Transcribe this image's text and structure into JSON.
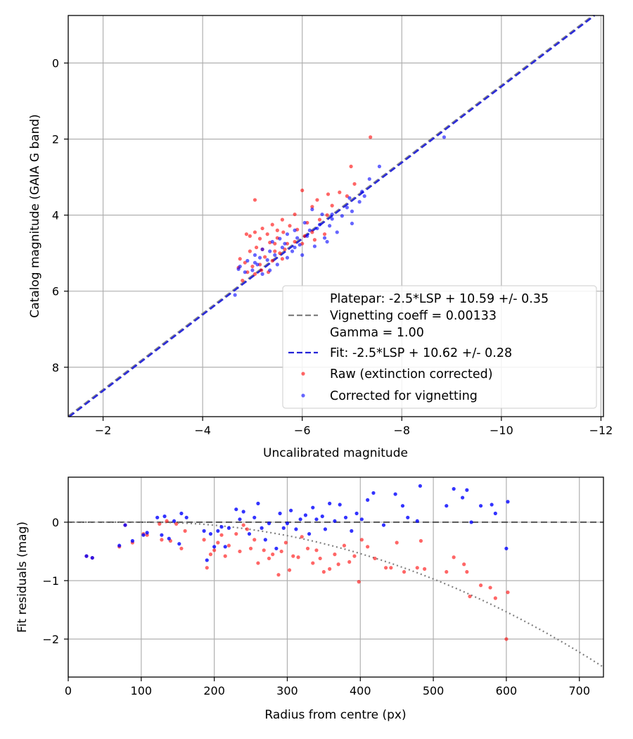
{
  "chart_data": [
    {
      "type": "scatter",
      "title": "",
      "xlabel": "Uncalibrated magnitude",
      "ylabel": "Catalog magnitude (GAIA G band)",
      "xlim": [
        -1.3,
        -12.05
      ],
      "ylim": [
        9.3,
        -1.25
      ],
      "x_ticks": [
        -2,
        -4,
        -6,
        -8,
        -10,
        -12
      ],
      "x_tick_labels": [
        "−2",
        "−4",
        "−6",
        "−8",
        "−10",
        "−12"
      ],
      "y_ticks": [
        0,
        2,
        4,
        6,
        8
      ],
      "y_tick_labels": [
        "0",
        "2",
        "4",
        "6",
        "8"
      ],
      "grid": true,
      "legend_position": "lower-right",
      "legend": {
        "platepar_lines": [
          "Platepar: -2.5*LSP + 10.59 +/- 0.35",
          "Vignetting coeff = 0.00133",
          "Gamma = 1.00"
        ],
        "fit": "Fit: -2.5*LSP + 10.62 +/- 0.28",
        "raw": "Raw (extinction corrected)",
        "corrected": "Corrected for vignetting"
      },
      "colors": {
        "platepar": "#808080",
        "fit": "#2323d8",
        "raw": "#ff0000",
        "corrected": "#0000ff"
      },
      "lines": [
        {
          "name": "Platepar",
          "slope": 1.0,
          "intercept": 10.59
        },
        {
          "name": "Fit",
          "slope": 1.0,
          "intercept": 10.62
        }
      ],
      "series": [
        {
          "name": "Raw (extinction corrected)",
          "points": [
            [
              -7.37,
              1.95
            ],
            [
              -6.98,
              2.72
            ],
            [
              -7.05,
              3.18
            ],
            [
              -6.75,
              3.4
            ],
            [
              -6.52,
              3.45
            ],
            [
              -6.0,
              3.35
            ],
            [
              -6.3,
              3.6
            ],
            [
              -6.6,
              3.75
            ],
            [
              -6.2,
              3.78
            ],
            [
              -5.05,
              3.6
            ],
            [
              -5.85,
              3.98
            ],
            [
              -5.6,
              4.12
            ],
            [
              -5.75,
              4.28
            ],
            [
              -5.4,
              4.25
            ],
            [
              -5.5,
              4.4
            ],
            [
              -5.62,
              4.45
            ],
            [
              -5.9,
              4.38
            ],
            [
              -6.1,
              4.2
            ],
            [
              -6.35,
              4.12
            ],
            [
              -6.5,
              4.0
            ],
            [
              -5.2,
              4.35
            ],
            [
              -5.3,
              4.5
            ],
            [
              -5.05,
              4.45
            ],
            [
              -4.88,
              4.5
            ],
            [
              -4.95,
              4.55
            ],
            [
              -5.5,
              4.6
            ],
            [
              -5.7,
              4.75
            ],
            [
              -5.85,
              4.7
            ],
            [
              -6.05,
              4.55
            ],
            [
              -6.2,
              4.45
            ],
            [
              -5.35,
              4.72
            ],
            [
              -5.2,
              4.9
            ],
            [
              -5.08,
              4.85
            ],
            [
              -4.95,
              4.95
            ],
            [
              -5.45,
              4.95
            ],
            [
              -5.55,
              5.0
            ],
            [
              -5.65,
              4.9
            ],
            [
              -6.0,
              4.75
            ],
            [
              -4.75,
              5.15
            ],
            [
              -4.85,
              5.25
            ],
            [
              -5.0,
              5.35
            ],
            [
              -5.15,
              5.3
            ],
            [
              -5.25,
              5.1
            ],
            [
              -5.4,
              5.2
            ],
            [
              -4.72,
              5.38
            ],
            [
              -4.9,
              5.5
            ],
            [
              -5.05,
              5.55
            ],
            [
              -5.18,
              5.45
            ],
            [
              -5.32,
              5.5
            ],
            [
              -4.8,
              5.72
            ],
            [
              -5.6,
              5.15
            ],
            [
              -6.25,
              4.65
            ],
            [
              -6.45,
              4.5
            ],
            [
              -5.15,
              4.62
            ],
            [
              -5.45,
              4.75
            ],
            [
              -6.9,
              3.5
            ]
          ]
        },
        {
          "name": "Corrected for vignetting",
          "points": [
            [
              -8.85,
              1.95
            ],
            [
              -7.55,
              2.72
            ],
            [
              -7.35,
              3.05
            ],
            [
              -7.2,
              3.38
            ],
            [
              -6.95,
              3.55
            ],
            [
              -6.9,
              3.8
            ],
            [
              -7.15,
              3.65
            ],
            [
              -6.8,
              4.02
            ],
            [
              -6.6,
              4.1
            ],
            [
              -6.4,
              3.98
            ],
            [
              -6.2,
              3.85
            ],
            [
              -7.0,
              4.22
            ],
            [
              -6.55,
              4.28
            ],
            [
              -6.3,
              4.35
            ],
            [
              -6.05,
              4.2
            ],
            [
              -5.85,
              4.4
            ],
            [
              -5.7,
              4.5
            ],
            [
              -6.1,
              4.55
            ],
            [
              -6.45,
              4.6
            ],
            [
              -6.7,
              4.45
            ],
            [
              -5.55,
              4.62
            ],
            [
              -5.95,
              4.78
            ],
            [
              -6.25,
              4.82
            ],
            [
              -5.4,
              4.7
            ],
            [
              -5.6,
              4.85
            ],
            [
              -5.8,
              4.95
            ],
            [
              -6.0,
              5.05
            ],
            [
              -5.2,
              4.9
            ],
            [
              -5.45,
              5.05
            ],
            [
              -5.7,
              5.12
            ],
            [
              -5.05,
              5.05
            ],
            [
              -5.3,
              5.18
            ],
            [
              -5.5,
              5.3
            ],
            [
              -4.9,
              5.2
            ],
            [
              -5.1,
              5.3
            ],
            [
              -5.35,
              5.45
            ],
            [
              -4.75,
              5.35
            ],
            [
              -5.0,
              5.45
            ],
            [
              -5.2,
              5.55
            ],
            [
              -4.85,
              5.5
            ],
            [
              -4.65,
              6.1
            ],
            [
              -4.72,
              5.42
            ],
            [
              -5.9,
              4.6
            ],
            [
              -6.15,
              4.4
            ],
            [
              -6.35,
              4.25
            ],
            [
              -6.6,
              3.98
            ],
            [
              -7.0,
              3.9
            ],
            [
              -7.25,
              3.5
            ],
            [
              -5.35,
              4.95
            ],
            [
              -5.15,
              5.12
            ],
            [
              -5.65,
              4.75
            ],
            [
              -6.5,
              4.7
            ],
            [
              -5.05,
              5.25
            ],
            [
              -5.85,
              4.85
            ]
          ]
        }
      ]
    },
    {
      "type": "scatter",
      "title": "",
      "xlabel": "Radius from centre (px)",
      "ylabel": "Fit residuals (mag)",
      "xlim": [
        0,
        733
      ],
      "ylim": [
        -2.65,
        0.77
      ],
      "x_ticks": [
        0,
        100,
        200,
        300,
        400,
        500,
        600,
        700
      ],
      "x_tick_labels": [
        "0",
        "100",
        "200",
        "300",
        "400",
        "500",
        "600",
        "700"
      ],
      "y_ticks": [
        0,
        -1,
        -2
      ],
      "y_tick_labels": [
        "0",
        "−1",
        "−2"
      ],
      "grid": true,
      "zero_line": 0,
      "vignetting_curve": {
        "coefficient": 0.00133,
        "gamma": 1.0,
        "flat_radius": 110
      },
      "series": [
        {
          "name": "Raw (extinction corrected)",
          "points": [
            [
              25,
              -0.58
            ],
            [
              33,
              -0.61
            ],
            [
              70,
              -0.42
            ],
            [
              78,
              -0.05
            ],
            [
              88,
              -0.35
            ],
            [
              103,
              -0.2
            ],
            [
              108,
              -0.22
            ],
            [
              125,
              -0.03
            ],
            [
              128,
              -0.3
            ],
            [
              135,
              0.02
            ],
            [
              140,
              -0.32
            ],
            [
              148,
              -0.03
            ],
            [
              155,
              -0.45
            ],
            [
              160,
              -0.15
            ],
            [
              186,
              -0.3
            ],
            [
              190,
              -0.78
            ],
            [
              195,
              -0.55
            ],
            [
              200,
              -0.48
            ],
            [
              205,
              -0.35
            ],
            [
              210,
              -0.22
            ],
            [
              215,
              -0.58
            ],
            [
              220,
              -0.4
            ],
            [
              230,
              -0.2
            ],
            [
              235,
              -0.5
            ],
            [
              240,
              -0.05
            ],
            [
              245,
              -0.12
            ],
            [
              250,
              -0.45
            ],
            [
              255,
              -0.3
            ],
            [
              260,
              -0.7
            ],
            [
              268,
              -0.48
            ],
            [
              275,
              -0.62
            ],
            [
              280,
              -0.55
            ],
            [
              288,
              -0.9
            ],
            [
              292,
              -0.5
            ],
            [
              298,
              -0.35
            ],
            [
              303,
              -0.82
            ],
            [
              308,
              -0.58
            ],
            [
              315,
              -0.6
            ],
            [
              320,
              -0.25
            ],
            [
              328,
              -0.45
            ],
            [
              335,
              -0.7
            ],
            [
              340,
              -0.48
            ],
            [
              345,
              -0.62
            ],
            [
              350,
              -0.85
            ],
            [
              358,
              -0.8
            ],
            [
              365,
              -0.55
            ],
            [
              370,
              -0.72
            ],
            [
              378,
              -0.4
            ],
            [
              385,
              -0.68
            ],
            [
              392,
              -0.58
            ],
            [
              398,
              -1.02
            ],
            [
              402,
              -0.3
            ],
            [
              410,
              -0.42
            ],
            [
              420,
              -0.62
            ],
            [
              435,
              -0.78
            ],
            [
              442,
              -0.78
            ],
            [
              450,
              -0.35
            ],
            [
              460,
              -0.85
            ],
            [
              478,
              -0.78
            ],
            [
              483,
              -0.32
            ],
            [
              488,
              -0.8
            ],
            [
              518,
              -0.85
            ],
            [
              528,
              -0.6
            ],
            [
              542,
              -0.72
            ],
            [
              546,
              -0.85
            ],
            [
              550,
              -1.27
            ],
            [
              565,
              -1.08
            ],
            [
              578,
              -1.12
            ],
            [
              585,
              -1.3
            ],
            [
              600,
              -2.0
            ],
            [
              602,
              -1.2
            ]
          ]
        },
        {
          "name": "Corrected for vignetting",
          "points": [
            [
              25,
              -0.58
            ],
            [
              33,
              -0.61
            ],
            [
              70,
              -0.4
            ],
            [
              78,
              -0.05
            ],
            [
              88,
              -0.32
            ],
            [
              103,
              -0.22
            ],
            [
              108,
              -0.18
            ],
            [
              122,
              0.08
            ],
            [
              128,
              -0.22
            ],
            [
              132,
              0.1
            ],
            [
              138,
              -0.28
            ],
            [
              145,
              0.02
            ],
            [
              152,
              -0.37
            ],
            [
              155,
              0.15
            ],
            [
              162,
              0.08
            ],
            [
              186,
              -0.15
            ],
            [
              190,
              -0.65
            ],
            [
              195,
              -0.2
            ],
            [
              200,
              -0.42
            ],
            [
              205,
              -0.15
            ],
            [
              210,
              -0.08
            ],
            [
              215,
              -0.42
            ],
            [
              220,
              -0.1
            ],
            [
              230,
              0.22
            ],
            [
              235,
              0.05
            ],
            [
              240,
              0.18
            ],
            [
              248,
              -0.2
            ],
            [
              255,
              0.08
            ],
            [
              260,
              0.32
            ],
            [
              265,
              -0.1
            ],
            [
              270,
              -0.3
            ],
            [
              275,
              -0.02
            ],
            [
              285,
              -0.45
            ],
            [
              290,
              0.15
            ],
            [
              295,
              -0.1
            ],
            [
              300,
              -0.02
            ],
            [
              305,
              0.2
            ],
            [
              312,
              -0.12
            ],
            [
              318,
              0.05
            ],
            [
              325,
              0.12
            ],
            [
              330,
              -0.2
            ],
            [
              335,
              0.25
            ],
            [
              340,
              0.05
            ],
            [
              348,
              0.1
            ],
            [
              352,
              -0.12
            ],
            [
              358,
              0.32
            ],
            [
              365,
              0.02
            ],
            [
              372,
              0.3
            ],
            [
              380,
              0.08
            ],
            [
              388,
              -0.15
            ],
            [
              395,
              0.15
            ],
            [
              402,
              0.05
            ],
            [
              410,
              0.38
            ],
            [
              418,
              0.5
            ],
            [
              432,
              -0.05
            ],
            [
              448,
              0.48
            ],
            [
              458,
              0.28
            ],
            [
              465,
              0.08
            ],
            [
              478,
              0.02
            ],
            [
              482,
              0.62
            ],
            [
              518,
              0.28
            ],
            [
              528,
              0.57
            ],
            [
              540,
              0.42
            ],
            [
              546,
              0.55
            ],
            [
              552,
              0.0
            ],
            [
              565,
              0.28
            ],
            [
              580,
              0.3
            ],
            [
              585,
              0.15
            ],
            [
              600,
              -0.45
            ],
            [
              602,
              0.35
            ]
          ]
        }
      ]
    }
  ]
}
